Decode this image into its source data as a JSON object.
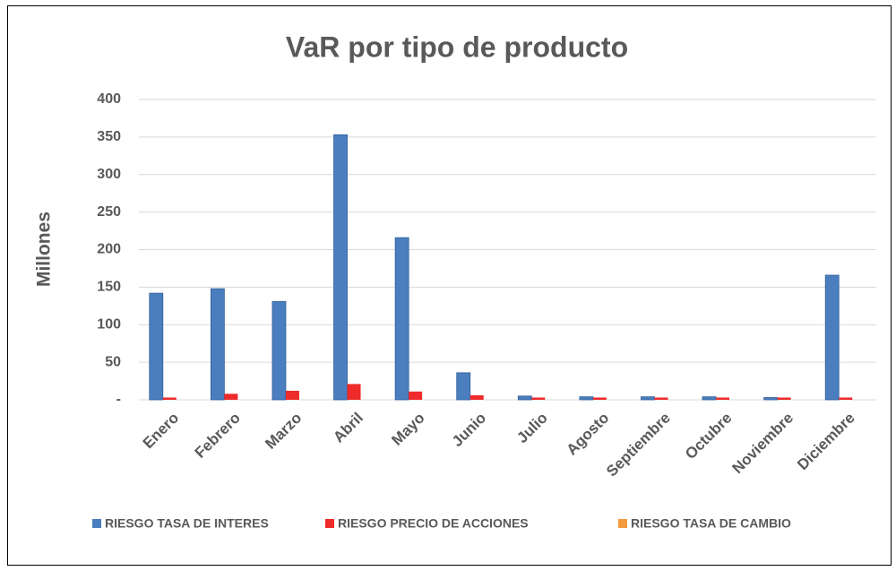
{
  "chart_data": {
    "type": "bar",
    "title": "VaR por tipo de producto",
    "ylabel": "Millones",
    "categories": [
      "Enero",
      "Febrero",
      "Marzo",
      "Abril",
      "Mayo",
      "Junio",
      "Julio",
      "Agosto",
      "Septiembre",
      "Octubre",
      "Noviembre",
      "Diciembre"
    ],
    "series": [
      {
        "name": "RIESGO TASA DE INTERES",
        "color": "#4a7ebf",
        "values": [
          142,
          148,
          131,
          353,
          216,
          36,
          5,
          4,
          4,
          4,
          3,
          166
        ]
      },
      {
        "name": "RIESGO  PRECIO DE ACCIONES",
        "color": "#ee2a2a",
        "values": [
          3,
          8,
          12,
          21,
          11,
          6,
          3,
          3,
          3,
          3,
          3,
          3
        ]
      },
      {
        "name": "RIESGO TASA DE CAMBIO",
        "color": "#f59a3c",
        "values": [
          0,
          0,
          0,
          0,
          0,
          0,
          0,
          0,
          0,
          0,
          0,
          0
        ]
      }
    ],
    "ylim": [
      0,
      400
    ],
    "yticks": [
      {
        "value": 0,
        "label": "-"
      },
      50,
      100,
      150,
      200,
      250,
      300,
      350,
      400
    ],
    "grid": true,
    "legend": "bottom"
  }
}
